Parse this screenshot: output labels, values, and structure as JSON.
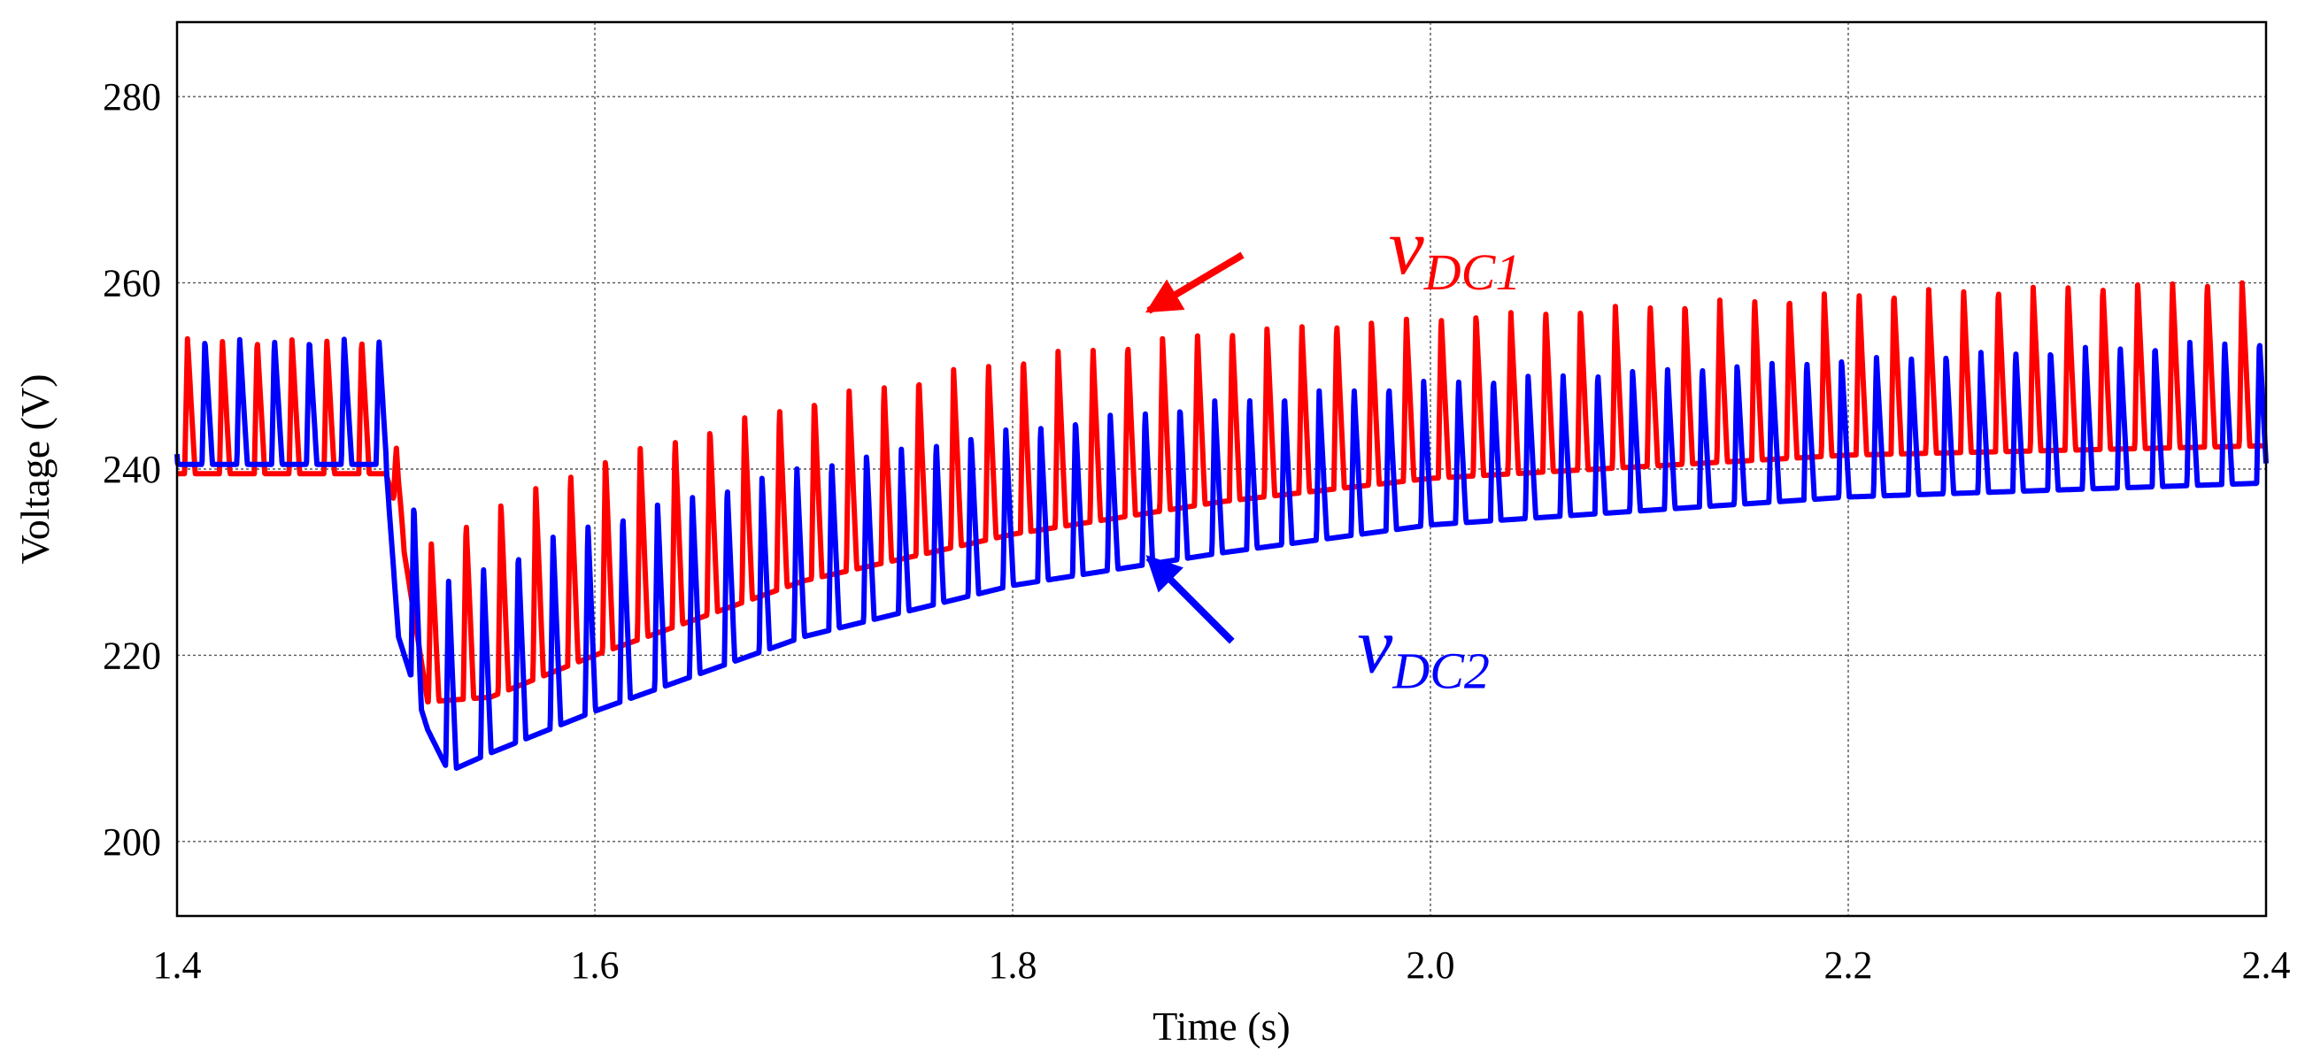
{
  "chart_data": {
    "type": "line",
    "title": "",
    "xlabel": "Time (s)",
    "ylabel": "Voltage (V)",
    "xlim": [
      1.4,
      2.4
    ],
    "ylim": [
      192,
      288
    ],
    "xticks": [
      1.4,
      1.6,
      1.8,
      2.0,
      2.2,
      2.4
    ],
    "xtick_labels": [
      "1.4",
      "1.6",
      "1.8",
      "2.0",
      "2.2",
      "2.4"
    ],
    "yticks": [
      200,
      220,
      240,
      260,
      280
    ],
    "ytick_labels": [
      "200",
      "220",
      "240",
      "260",
      "280"
    ],
    "grid": true,
    "legend": "none",
    "series": [
      {
        "name": "vDC1",
        "color": "#ff0000",
        "ripple_period_s": 0.01667,
        "ripple_phase_s": 0.0,
        "baseline": {
          "t": [
            1.4,
            1.5,
            1.506,
            1.52,
            1.55,
            1.6,
            1.7,
            1.8,
            1.9,
            2.0,
            2.2,
            2.4
          ],
          "v": [
            239.5,
            239.5,
            235.0,
            215.0,
            215.5,
            220.0,
            228.0,
            233.0,
            236.5,
            239.0,
            241.5,
            242.5
          ]
        },
        "peak": {
          "t": [
            1.4,
            1.5,
            1.506,
            1.52,
            1.55,
            1.6,
            1.7,
            1.8,
            1.9,
            2.0,
            2.2,
            2.4
          ],
          "v": [
            254.0,
            254.0,
            240.0,
            232.0,
            236.0,
            241.0,
            247.5,
            252.0,
            255.0,
            256.5,
            259.0,
            260.5
          ]
        }
      },
      {
        "name": "vDC2",
        "color": "#0000ff",
        "ripple_period_s": 0.01667,
        "ripple_phase_s": 0.0083,
        "baseline": {
          "t": [
            1.4,
            1.5,
            1.506,
            1.52,
            1.53,
            1.55,
            1.6,
            1.7,
            1.8,
            1.9,
            2.0,
            2.2,
            2.4
          ],
          "v": [
            240.5,
            240.5,
            222.0,
            212.0,
            207.5,
            209.5,
            214.0,
            222.0,
            227.5,
            231.0,
            234.0,
            237.0,
            238.5
          ]
        },
        "peak": {
          "t": [
            1.4,
            1.5,
            1.506,
            1.52,
            1.55,
            1.6,
            1.7,
            1.8,
            1.9,
            2.0,
            2.2,
            2.4
          ],
          "v": [
            254.0,
            254.0,
            247.0,
            227.0,
            230.0,
            234.5,
            240.5,
            244.5,
            247.5,
            249.5,
            252.0,
            254.0
          ]
        }
      }
    ],
    "annotations": [
      {
        "id": "vdc1",
        "main": "v",
        "sub": "DC1",
        "color": "#ff0000",
        "text_at": [
          1.98,
          261.0
        ],
        "arrow_from": [
          1.91,
          263.0
        ],
        "arrow_to": [
          1.865,
          257.0
        ]
      },
      {
        "id": "vdc2",
        "main": "v",
        "sub": "DC2",
        "color": "#0000ff",
        "text_at": [
          1.965,
          218.2
        ],
        "arrow_from": [
          1.905,
          221.5
        ],
        "arrow_to": [
          1.865,
          230.5
        ]
      }
    ]
  }
}
